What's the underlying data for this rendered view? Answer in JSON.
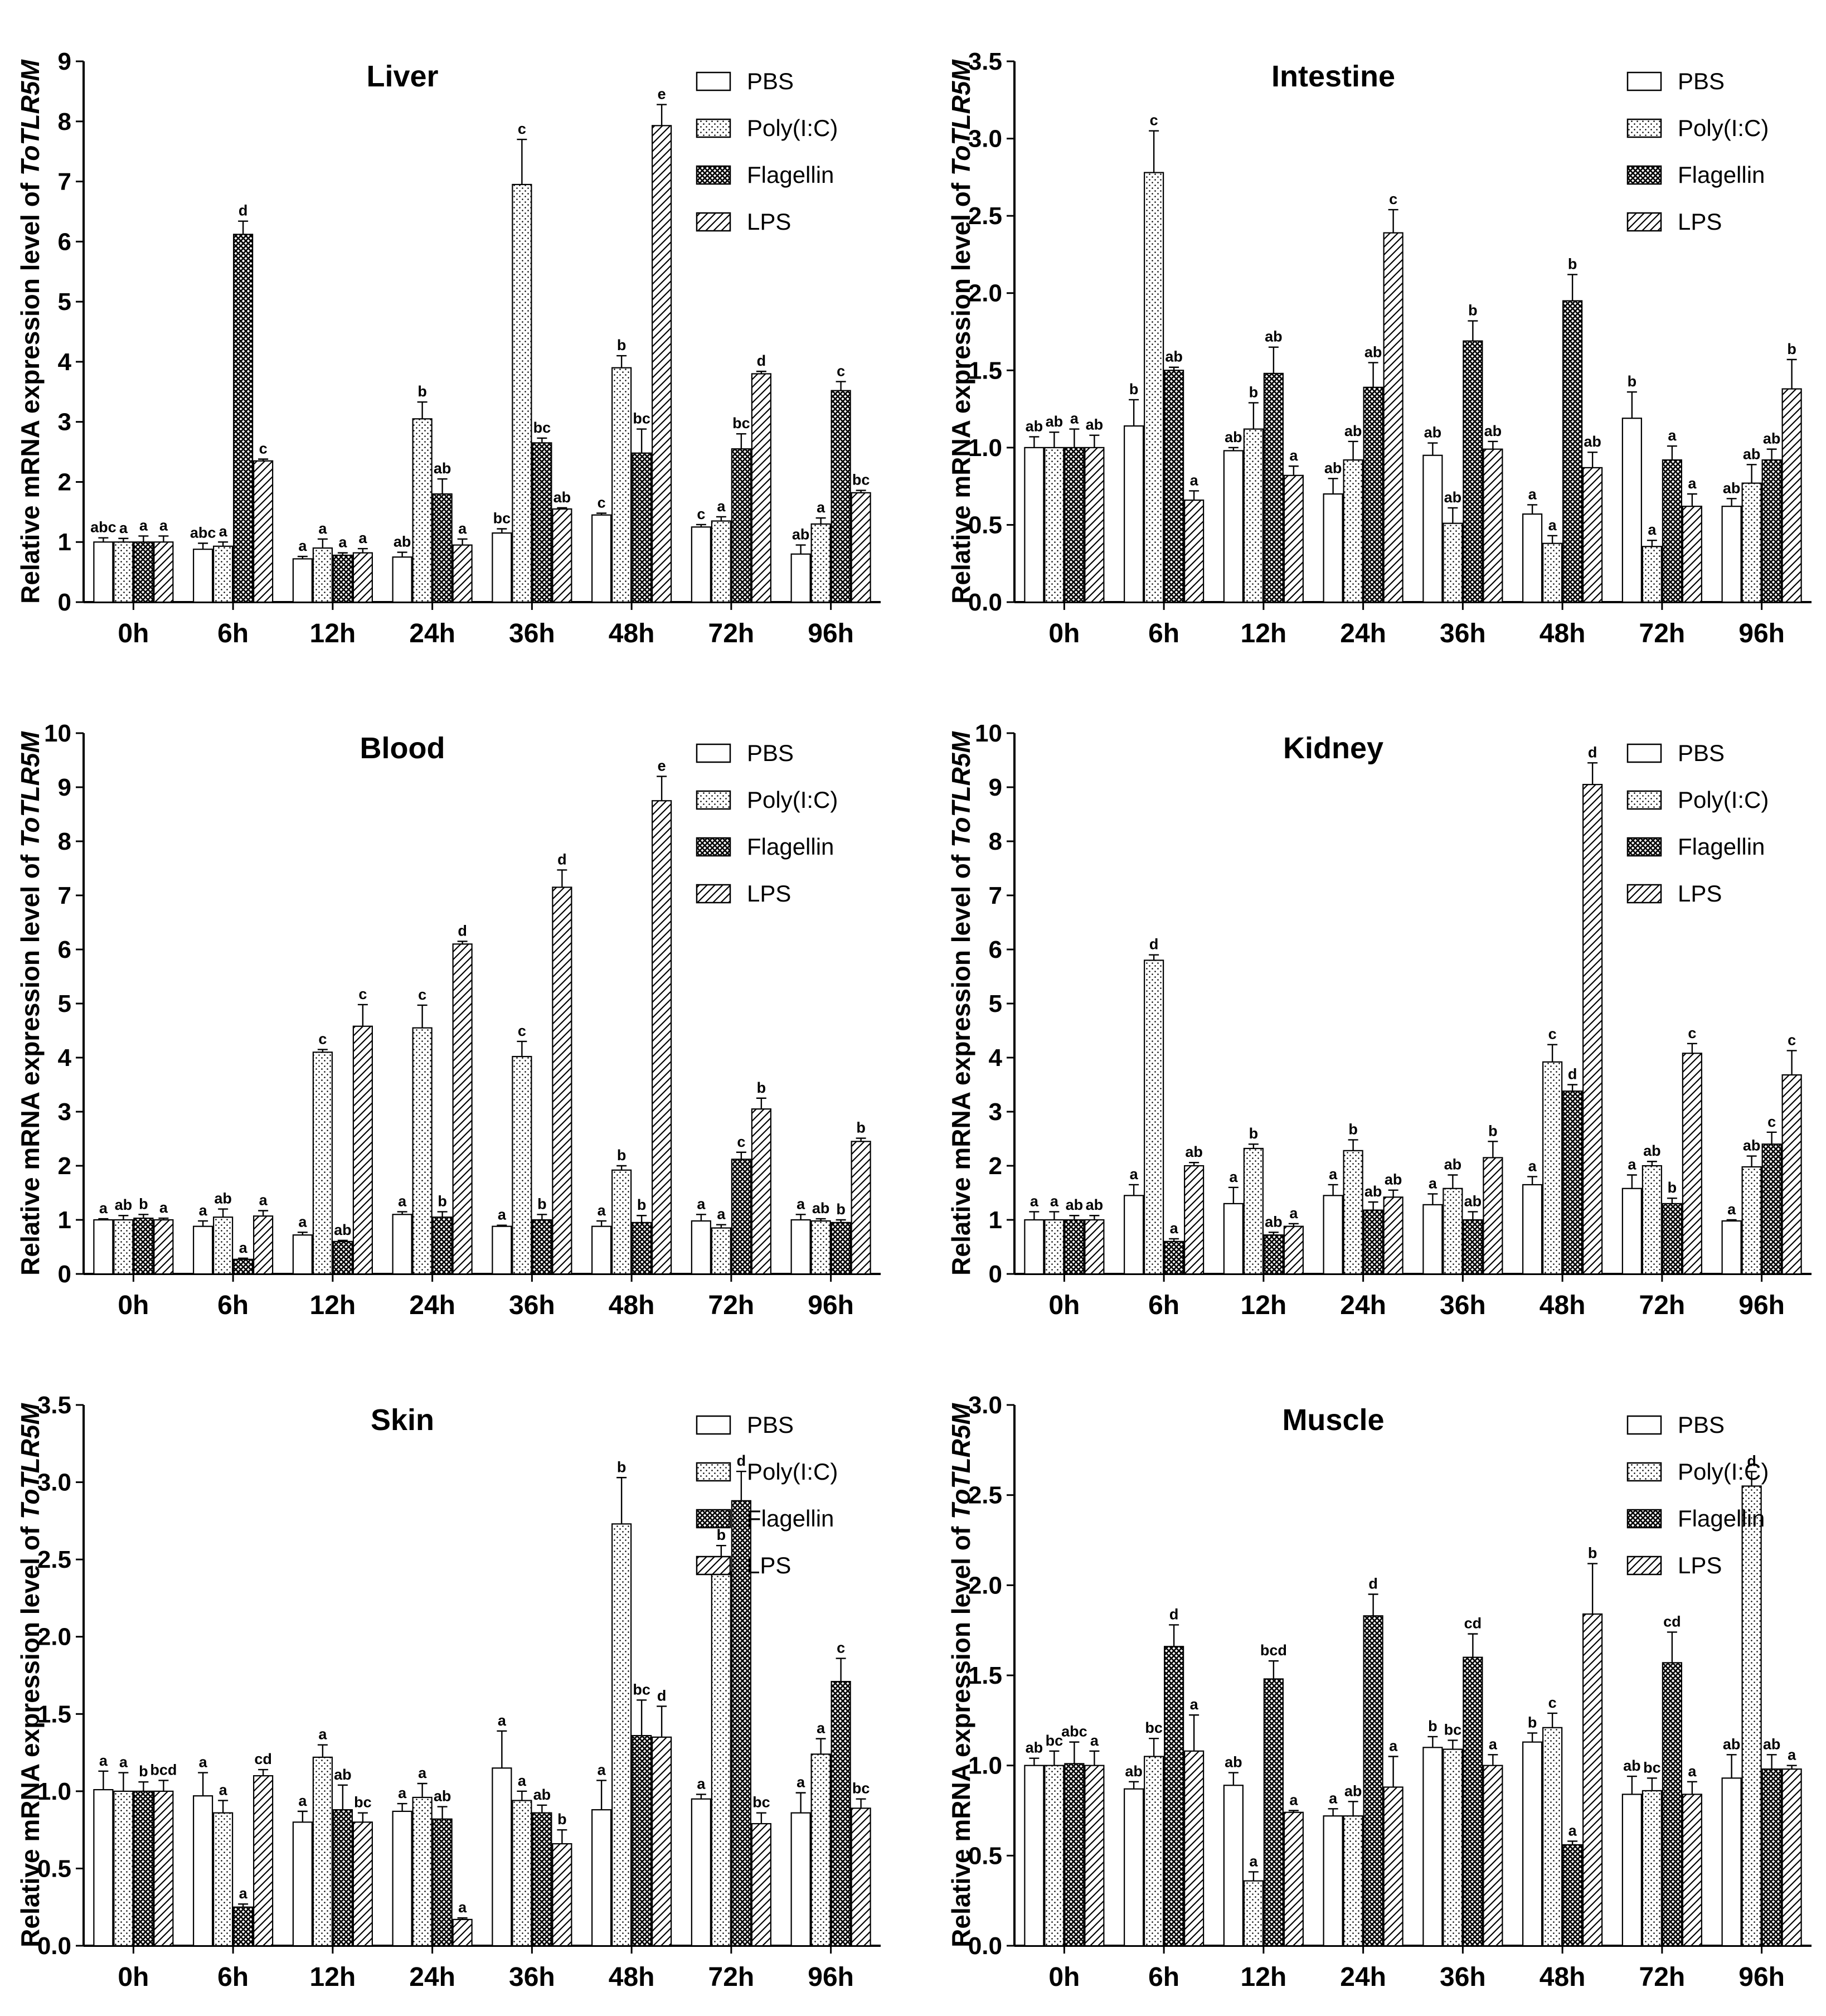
{
  "figure": {
    "ylabel_prefix": "Relative mRNA expression level of ",
    "ylabel_gene": "ToTLR5M"
  },
  "legend": [
    "PBS",
    "Poly(I:C)",
    "Flagellin",
    "LPS"
  ],
  "pattern_names": [
    "blank-pattern",
    "dots-pattern",
    "crosshatch-pattern",
    "diagonal-lines-pattern"
  ],
  "chart_data": [
    {
      "type": "bar",
      "title": "Liver",
      "xlabel": "",
      "ylabel": "Relative mRNA expression level of ToTLR5M",
      "categories": [
        "0h",
        "6h",
        "12h",
        "24h",
        "36h",
        "48h",
        "72h",
        "96h"
      ],
      "ylim": [
        0,
        9
      ],
      "yticks": [
        "0",
        "1",
        "2",
        "3",
        "4",
        "5",
        "6",
        "7",
        "8",
        "9"
      ],
      "series": [
        {
          "name": "PBS",
          "values": [
            1.0,
            0.88,
            0.72,
            0.75,
            1.15,
            1.45,
            1.25,
            0.8
          ],
          "errors": [
            0.07,
            0.1,
            0.04,
            0.08,
            0.07,
            0.03,
            0.04,
            0.15
          ],
          "labels": [
            "abc",
            "abc",
            "a",
            "ab",
            "bc",
            "c",
            "c",
            "ab"
          ]
        },
        {
          "name": "Poly(I:C)",
          "values": [
            1.0,
            0.93,
            0.9,
            3.05,
            6.95,
            3.9,
            1.35,
            1.3
          ],
          "errors": [
            0.06,
            0.07,
            0.15,
            0.28,
            0.75,
            0.2,
            0.07,
            0.1
          ],
          "labels": [
            "a",
            "a",
            "a",
            "b",
            "c",
            "b",
            "a",
            "a"
          ]
        },
        {
          "name": "Flagellin",
          "values": [
            1.0,
            6.12,
            0.78,
            1.8,
            2.65,
            2.48,
            2.55,
            3.52
          ],
          "errors": [
            0.1,
            0.22,
            0.04,
            0.25,
            0.08,
            0.4,
            0.25,
            0.15
          ],
          "labels": [
            "a",
            "d",
            "a",
            "ab",
            "bc",
            "bc",
            "bc",
            "c"
          ]
        },
        {
          "name": "LPS",
          "values": [
            1.0,
            2.35,
            0.82,
            0.95,
            1.55,
            7.93,
            3.8,
            1.82
          ],
          "errors": [
            0.1,
            0.03,
            0.07,
            0.1,
            0.02,
            0.35,
            0.04,
            0.04
          ],
          "labels": [
            "a",
            "c",
            "a",
            "a",
            "ab",
            "e",
            "d",
            "bc"
          ]
        }
      ],
      "legend_position": "top-right"
    },
    {
      "type": "bar",
      "title": "Intestine",
      "xlabel": "",
      "ylabel": "Relative mRNA expression level of ToTLR5M",
      "categories": [
        "0h",
        "6h",
        "12h",
        "24h",
        "36h",
        "48h",
        "72h",
        "96h"
      ],
      "ylim": [
        0,
        3.5
      ],
      "yticks": [
        "0.0",
        "0.5",
        "1.0",
        "1.5",
        "2.0",
        "2.5",
        "3.0",
        "3.5"
      ],
      "series": [
        {
          "name": "PBS",
          "values": [
            1.0,
            1.14,
            0.98,
            0.7,
            0.95,
            0.57,
            1.19,
            0.62
          ],
          "errors": [
            0.07,
            0.17,
            0.02,
            0.1,
            0.08,
            0.06,
            0.17,
            0.05
          ],
          "labels": [
            "ab",
            "b",
            "ab",
            "ab",
            "ab",
            "a",
            "b",
            "ab"
          ]
        },
        {
          "name": "Poly(I:C)",
          "values": [
            1.0,
            2.78,
            1.12,
            0.92,
            0.51,
            0.38,
            0.36,
            0.77
          ],
          "errors": [
            0.1,
            0.27,
            0.17,
            0.12,
            0.1,
            0.05,
            0.04,
            0.12
          ],
          "labels": [
            "ab",
            "c",
            "b",
            "ab",
            "ab",
            "a",
            "a",
            "ab"
          ]
        },
        {
          "name": "Flagellin",
          "values": [
            1.0,
            1.5,
            1.48,
            1.39,
            1.69,
            1.95,
            0.92,
            0.92
          ],
          "errors": [
            0.12,
            0.02,
            0.17,
            0.16,
            0.13,
            0.17,
            0.09,
            0.07
          ],
          "labels": [
            "a",
            "ab",
            "ab",
            "ab",
            "b",
            "b",
            "a",
            "ab"
          ]
        },
        {
          "name": "LPS",
          "values": [
            1.0,
            0.66,
            0.82,
            2.39,
            0.99,
            0.87,
            0.62,
            1.38
          ],
          "errors": [
            0.08,
            0.06,
            0.06,
            0.15,
            0.05,
            0.1,
            0.08,
            0.19
          ],
          "labels": [
            "ab",
            "a",
            "a",
            "c",
            "ab",
            "ab",
            "a",
            "b"
          ]
        }
      ],
      "legend_position": "top-right"
    },
    {
      "type": "bar",
      "title": "Blood",
      "xlabel": "",
      "ylabel": "Relative mRNA expression level of ToTLR5M",
      "categories": [
        "0h",
        "6h",
        "12h",
        "24h",
        "36h",
        "48h",
        "72h",
        "96h"
      ],
      "ylim": [
        0,
        10
      ],
      "yticks": [
        "0",
        "1",
        "2",
        "3",
        "4",
        "5",
        "6",
        "7",
        "8",
        "9",
        "10"
      ],
      "series": [
        {
          "name": "PBS",
          "values": [
            1.0,
            0.88,
            0.72,
            1.1,
            0.88,
            0.88,
            0.98,
            1.0
          ],
          "errors": [
            0.02,
            0.1,
            0.05,
            0.05,
            0.02,
            0.1,
            0.12,
            0.1
          ],
          "labels": [
            "a",
            "a",
            "a",
            "a",
            "a",
            "a",
            "a",
            "a"
          ]
        },
        {
          "name": "Poly(I:C)",
          "values": [
            1.0,
            1.05,
            4.1,
            4.55,
            4.02,
            1.92,
            0.85,
            0.98
          ],
          "errors": [
            0.08,
            0.15,
            0.05,
            0.42,
            0.28,
            0.08,
            0.06,
            0.04
          ],
          "labels": [
            "ab",
            "ab",
            "c",
            "c",
            "c",
            "b",
            "a",
            "ab"
          ]
        },
        {
          "name": "Flagellin",
          "values": [
            1.03,
            0.27,
            0.6,
            1.05,
            1.0,
            0.95,
            2.12,
            0.95
          ],
          "errors": [
            0.07,
            0.02,
            0.02,
            0.1,
            0.1,
            0.13,
            0.13,
            0.05
          ],
          "labels": [
            "b",
            "a",
            "ab",
            "b",
            "b",
            "b",
            "c",
            "b"
          ]
        },
        {
          "name": "LPS",
          "values": [
            1.0,
            1.07,
            4.58,
            6.1,
            7.15,
            8.75,
            3.05,
            2.45
          ],
          "errors": [
            0.03,
            0.1,
            0.4,
            0.05,
            0.32,
            0.45,
            0.2,
            0.06
          ],
          "labels": [
            "a",
            "a",
            "c",
            "d",
            "d",
            "e",
            "b",
            "b"
          ]
        }
      ],
      "legend_position": "top-right"
    },
    {
      "type": "bar",
      "title": "Kidney",
      "xlabel": "",
      "ylabel": "Relative mRNA expression level of ToTLR5M",
      "categories": [
        "0h",
        "6h",
        "12h",
        "24h",
        "36h",
        "48h",
        "72h",
        "96h"
      ],
      "ylim": [
        0,
        10
      ],
      "yticks": [
        "0",
        "1",
        "2",
        "3",
        "4",
        "5",
        "6",
        "7",
        "8",
        "9",
        "10"
      ],
      "series": [
        {
          "name": "PBS",
          "values": [
            1.0,
            1.45,
            1.3,
            1.45,
            1.28,
            1.65,
            1.58,
            0.98
          ],
          "errors": [
            0.15,
            0.2,
            0.3,
            0.2,
            0.2,
            0.15,
            0.25,
            0.02
          ],
          "labels": [
            "a",
            "a",
            "a",
            "a",
            "a",
            "a",
            "a",
            "a"
          ]
        },
        {
          "name": "Poly(I:C)",
          "values": [
            1.0,
            5.8,
            2.32,
            2.28,
            1.58,
            3.92,
            2.0,
            1.98
          ],
          "errors": [
            0.15,
            0.1,
            0.08,
            0.2,
            0.25,
            0.32,
            0.08,
            0.2
          ],
          "labels": [
            "a",
            "d",
            "b",
            "b",
            "ab",
            "c",
            "ab",
            "ab"
          ]
        },
        {
          "name": "Flagellin",
          "values": [
            1.0,
            0.6,
            0.72,
            1.18,
            1.0,
            3.38,
            1.3,
            2.4
          ],
          "errors": [
            0.08,
            0.05,
            0.05,
            0.15,
            0.15,
            0.12,
            0.1,
            0.22
          ],
          "labels": [
            "ab",
            "a",
            "ab",
            "ab",
            "ab",
            "d",
            "b",
            "c"
          ]
        },
        {
          "name": "LPS",
          "values": [
            1.0,
            2.0,
            0.88,
            1.42,
            2.15,
            9.05,
            4.08,
            3.68
          ],
          "errors": [
            0.08,
            0.06,
            0.05,
            0.13,
            0.3,
            0.4,
            0.18,
            0.45
          ],
          "labels": [
            "ab",
            "ab",
            "a",
            "ab",
            "b",
            "d",
            "c",
            "c"
          ]
        }
      ],
      "legend_position": "top-right"
    },
    {
      "type": "bar",
      "title": "Skin",
      "xlabel": "",
      "ylabel": "Relative mRNA expression level of ToTLR5M",
      "categories": [
        "0h",
        "6h",
        "12h",
        "24h",
        "36h",
        "48h",
        "72h",
        "96h"
      ],
      "ylim": [
        0,
        3.5
      ],
      "yticks": [
        "0.0",
        "0.5",
        "1.0",
        "1.5",
        "2.0",
        "2.5",
        "3.0",
        "3.5"
      ],
      "series": [
        {
          "name": "PBS",
          "values": [
            1.01,
            0.97,
            0.8,
            0.87,
            1.15,
            0.88,
            0.95,
            0.86
          ],
          "errors": [
            0.12,
            0.15,
            0.07,
            0.05,
            0.24,
            0.19,
            0.03,
            0.13
          ],
          "labels": [
            "a",
            "a",
            "a",
            "a",
            "a",
            "a",
            "a",
            "a"
          ]
        },
        {
          "name": "Poly(I:C)",
          "values": [
            1.0,
            0.86,
            1.22,
            0.96,
            0.94,
            2.73,
            2.42,
            1.24
          ],
          "errors": [
            0.12,
            0.08,
            0.08,
            0.09,
            0.06,
            0.3,
            0.17,
            0.1
          ],
          "labels": [
            "a",
            "a",
            "a",
            "a",
            "a",
            "b",
            "b",
            "a"
          ]
        },
        {
          "name": "Flagellin",
          "values": [
            1.0,
            0.25,
            0.88,
            0.82,
            0.86,
            1.36,
            2.88,
            1.71
          ],
          "errors": [
            0.06,
            0.02,
            0.16,
            0.08,
            0.05,
            0.23,
            0.19,
            0.15
          ],
          "labels": [
            "b",
            "a",
            "ab",
            "ab",
            "ab",
            "bc",
            "d",
            "c"
          ]
        },
        {
          "name": "LPS",
          "values": [
            1.0,
            1.1,
            0.8,
            0.17,
            0.66,
            1.35,
            0.79,
            0.89
          ],
          "errors": [
            0.07,
            0.04,
            0.06,
            0.01,
            0.09,
            0.2,
            0.07,
            0.06
          ],
          "labels": [
            "bcd",
            "cd",
            "bc",
            "a",
            "b",
            "d",
            "bc",
            "bc"
          ]
        }
      ],
      "legend_position": "top-right"
    },
    {
      "type": "bar",
      "title": "Muscle",
      "xlabel": "",
      "ylabel": "Relative mRNA expression level of ToTLR5M",
      "categories": [
        "0h",
        "6h",
        "12h",
        "24h",
        "36h",
        "48h",
        "72h",
        "96h"
      ],
      "ylim": [
        0,
        3.0
      ],
      "yticks": [
        "0.0",
        "0.5",
        "1.0",
        "1.5",
        "2.0",
        "2.5",
        "3.0"
      ],
      "series": [
        {
          "name": "PBS",
          "values": [
            1.0,
            0.87,
            0.89,
            0.72,
            1.1,
            1.13,
            0.84,
            0.93
          ],
          "errors": [
            0.04,
            0.04,
            0.07,
            0.04,
            0.06,
            0.05,
            0.1,
            0.13
          ],
          "labels": [
            "ab",
            "ab",
            "ab",
            "a",
            "b",
            "b",
            "ab",
            "ab"
          ]
        },
        {
          "name": "Poly(I:C)",
          "values": [
            1.0,
            1.05,
            0.36,
            0.72,
            1.09,
            1.21,
            0.86,
            2.55
          ],
          "errors": [
            0.08,
            0.1,
            0.05,
            0.08,
            0.05,
            0.08,
            0.07,
            0.08
          ],
          "labels": [
            "bc",
            "bc",
            "a",
            "ab",
            "bc",
            "c",
            "bc",
            "d"
          ]
        },
        {
          "name": "Flagellin",
          "values": [
            1.01,
            1.66,
            1.48,
            1.83,
            1.6,
            0.56,
            1.57,
            0.98
          ],
          "errors": [
            0.12,
            0.12,
            0.1,
            0.12,
            0.13,
            0.02,
            0.17,
            0.08
          ],
          "labels": [
            "abc",
            "d",
            "bcd",
            "d",
            "cd",
            "a",
            "cd",
            "ab"
          ]
        },
        {
          "name": "LPS",
          "values": [
            1.0,
            1.08,
            0.74,
            0.88,
            1.0,
            1.84,
            0.84,
            0.98
          ],
          "errors": [
            0.08,
            0.2,
            0.01,
            0.17,
            0.06,
            0.28,
            0.07,
            0.02
          ],
          "labels": [
            "a",
            "a",
            "a",
            "a",
            "a",
            "b",
            "a",
            "a"
          ]
        }
      ],
      "legend_position": "top-right"
    }
  ]
}
